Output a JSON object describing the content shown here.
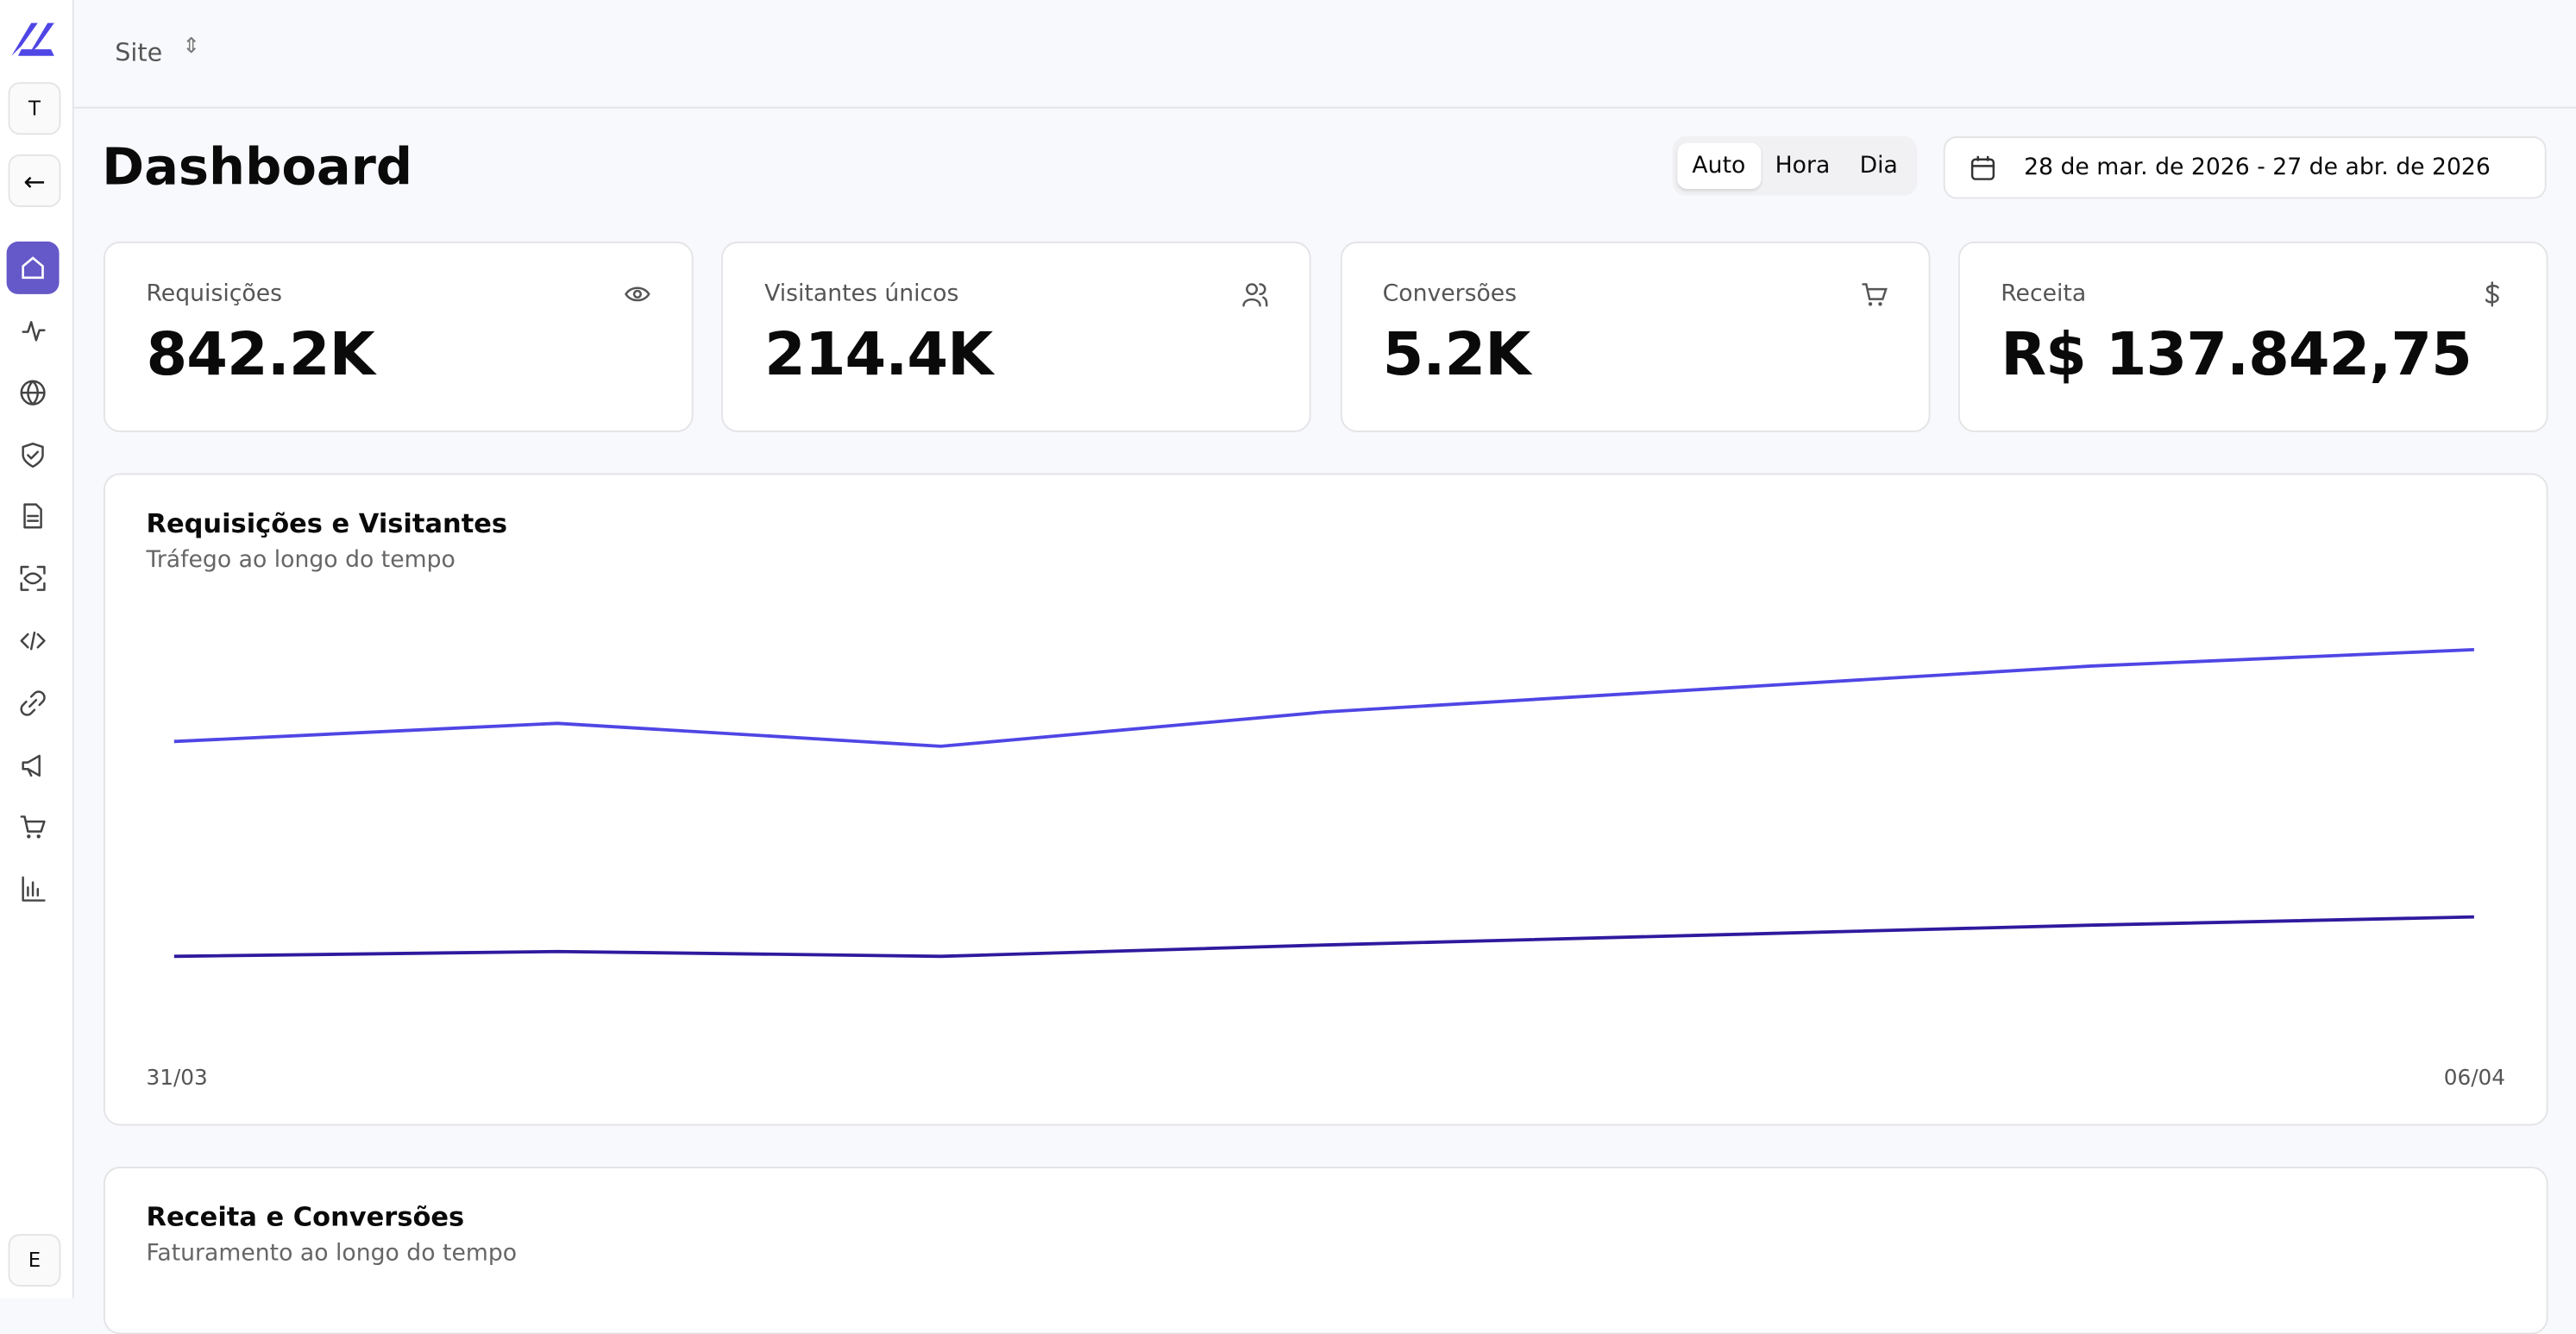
{
  "sidebar": {
    "workspace": "T",
    "user": "E"
  },
  "header": {
    "site": "Site"
  },
  "page": {
    "title": "Dashboard",
    "ranges": [
      "Auto",
      "Hora",
      "Dia"
    ],
    "date_range": "28 de mar. de 2026 - 27 de abr. de 2026"
  },
  "cards": [
    {
      "label": "Requisições",
      "value": "842.2K"
    },
    {
      "label": "Visitantes únicos",
      "value": "214.4K"
    },
    {
      "label": "Conversões",
      "value": "5.2K"
    },
    {
      "label": "Receita",
      "value": "R$ 137.842,75"
    }
  ],
  "chart_data": {
    "type": "line",
    "title": "Requisições e Visitantes",
    "subtitle": "Tráfego ao longo do tempo",
    "categories": [
      "31/03",
      null,
      null,
      null,
      null,
      null,
      "06/04"
    ],
    "series": [
      {
        "color": "#4f46e5",
        "values": [
          110000,
          116400,
          108300,
          120400,
          128500,
          136600,
          142400
        ]
      },
      {
        "color": "#2e1a9e",
        "values": [
          34200,
          35900,
          34200,
          38200,
          41700,
          45200,
          48100
        ]
      }
    ],
    "ylim": [
      0,
      160000
    ]
  },
  "second_card": {
    "title": "Receita e Conversões",
    "subtitle": "Faturamento ao longo do tempo"
  }
}
